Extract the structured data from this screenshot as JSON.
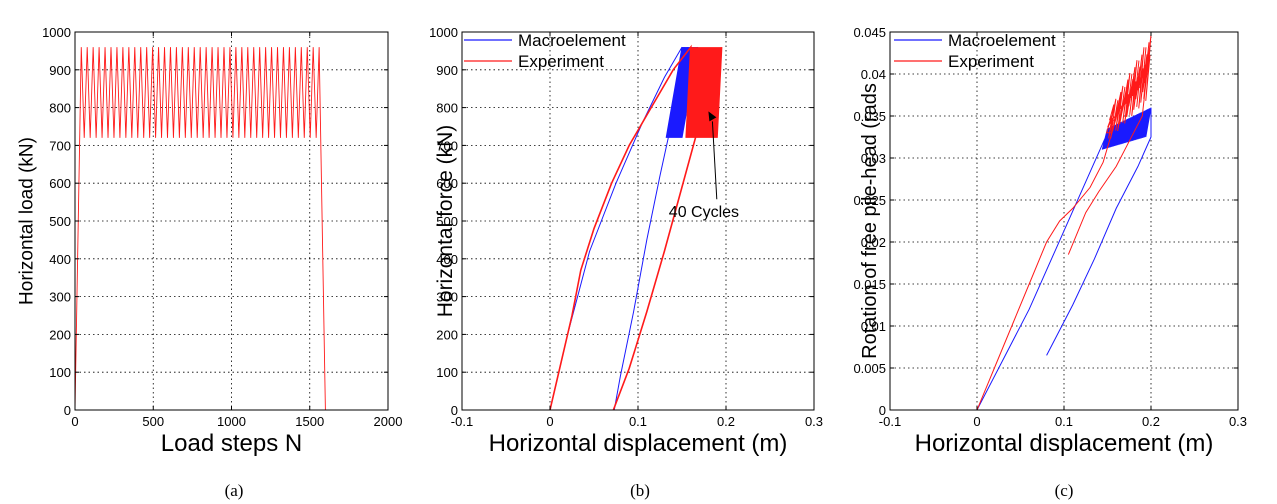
{
  "colors": {
    "macro": "#1a1aff",
    "experiment": "#ff1a1a",
    "axis": "#000000"
  },
  "chart_data": [
    {
      "id": "a",
      "type": "line",
      "caption": "(a)",
      "xlabel": "Load steps N",
      "ylabel": "Horizontal load (kN)",
      "xlim": [
        0,
        2000
      ],
      "ylim": [
        0,
        1000
      ],
      "xticks": [
        0,
        500,
        1000,
        1500,
        2000
      ],
      "yticks": [
        0,
        100,
        200,
        300,
        400,
        500,
        600,
        700,
        800,
        900,
        1000
      ],
      "grid": true,
      "series": [
        {
          "color": "experiment",
          "ramp_up": [
            [
              0,
              0
            ],
            [
              40,
              960
            ]
          ],
          "cycles": {
            "count": 40,
            "start": 40,
            "end": 1560,
            "min": 720,
            "max": 960
          },
          "unload": [
            [
              1560,
              960
            ],
            [
              1600,
              0
            ]
          ]
        }
      ]
    },
    {
      "id": "b",
      "type": "line",
      "caption": "(b)",
      "xlabel": "Horizontal displacement (m)",
      "ylabel": "Horizontal force (kN)",
      "xlim": [
        -0.1,
        0.3
      ],
      "ylim": [
        0,
        1000
      ],
      "xticks": [
        -0.1,
        0,
        0.1,
        0.2,
        0.3
      ],
      "yticks": [
        0,
        100,
        200,
        300,
        400,
        500,
        600,
        700,
        800,
        900,
        1000
      ],
      "grid": true,
      "legend": {
        "position": "top-left",
        "entries": [
          {
            "label": "Macroelement",
            "color": "macro"
          },
          {
            "label": "Experiment",
            "color": "experiment"
          }
        ]
      },
      "annotation": {
        "text": "40 Cycles",
        "arrow_to": [
          0.18,
          790
        ],
        "text_at": [
          0.135,
          510
        ]
      },
      "series": [
        {
          "color": "macro",
          "loading": [
            [
              0,
              0
            ],
            [
              0.02,
              200
            ],
            [
              0.045,
              420
            ],
            [
              0.075,
              600
            ],
            [
              0.105,
              760
            ],
            [
              0.13,
              880
            ],
            [
              0.15,
              960
            ]
          ],
          "cycles": {
            "count": 40,
            "x_start": 0.15,
            "x_end": 0.168,
            "min": 720,
            "max": 960,
            "dx": 0.02
          },
          "unloading": [
            [
              0.168,
              960
            ],
            [
              0.155,
              900
            ],
            [
              0.14,
              780
            ],
            [
              0.125,
              620
            ],
            [
              0.11,
              450
            ],
            [
              0.095,
              260
            ],
            [
              0.08,
              90
            ],
            [
              0.073,
              0
            ]
          ]
        },
        {
          "color": "experiment",
          "loading": [
            [
              0,
              0
            ],
            [
              0.01,
              100
            ],
            [
              0.025,
              250
            ],
            [
              0.035,
              370
            ],
            [
              0.05,
              480
            ],
            [
              0.07,
              600
            ],
            [
              0.09,
              700
            ],
            [
              0.11,
              780
            ],
            [
              0.125,
              840
            ],
            [
              0.14,
              900
            ],
            [
              0.16,
              960
            ]
          ],
          "cycles": {
            "count": 40,
            "x_start": 0.16,
            "x_end": 0.195,
            "min": 720,
            "max": 960,
            "dx": 0.015
          },
          "unloading": [
            [
              0.195,
              960
            ],
            [
              0.19,
              900
            ],
            [
              0.17,
              760
            ],
            [
              0.15,
              590
            ],
            [
              0.13,
              420
            ],
            [
              0.11,
              260
            ],
            [
              0.09,
              110
            ],
            [
              0.072,
              0
            ]
          ]
        }
      ]
    },
    {
      "id": "c",
      "type": "line",
      "caption": "(c)",
      "xlabel": "Horizontal displacement (m)",
      "ylabel": "Rotation of free pile-head (rads",
      "xlim": [
        -0.1,
        0.3
      ],
      "ylim": [
        0,
        0.045
      ],
      "xticks": [
        -0.1,
        0,
        0.1,
        0.2,
        0.3
      ],
      "yticks": [
        0,
        0.005,
        0.01,
        0.015,
        0.02,
        0.025,
        0.03,
        0.035,
        0.04,
        0.045
      ],
      "grid": true,
      "legend": {
        "position": "top-left",
        "entries": [
          {
            "label": "Macroelement",
            "color": "macro"
          },
          {
            "label": "Experiment",
            "color": "experiment"
          }
        ]
      },
      "series": [
        {
          "color": "macro",
          "loading": [
            [
              0,
              0
            ],
            [
              0.03,
              0.006
            ],
            [
              0.06,
              0.012
            ],
            [
              0.09,
              0.019
            ],
            [
              0.12,
              0.026
            ],
            [
              0.15,
              0.033
            ]
          ],
          "band": {
            "x_start": 0.15,
            "x_end": 0.2,
            "lower_start": 0.031,
            "lower_end": 0.0325,
            "upper_start": 0.0335,
            "upper_end": 0.036,
            "cycles": 40
          },
          "unloading": [
            [
              0.2,
              0.0325
            ],
            [
              0.185,
              0.029
            ],
            [
              0.16,
              0.024
            ],
            [
              0.135,
              0.018
            ],
            [
              0.11,
              0.0125
            ],
            [
              0.08,
              0.0065
            ]
          ]
        },
        {
          "color": "experiment",
          "loading": [
            [
              0,
              0
            ],
            [
              0.02,
              0.005
            ],
            [
              0.04,
              0.01
            ],
            [
              0.06,
              0.015
            ],
            [
              0.08,
              0.02
            ],
            [
              0.095,
              0.0225
            ],
            [
              0.11,
              0.024
            ],
            [
              0.13,
              0.0265
            ],
            [
              0.145,
              0.0295
            ],
            [
              0.155,
              0.033
            ]
          ],
          "band": {
            "x_start": 0.155,
            "x_end": 0.2,
            "lower_start": 0.033,
            "lower_end": 0.038,
            "upper_start": 0.035,
            "upper_end": 0.0435,
            "cycles": 40
          },
          "unloading": [
            [
              0.19,
              0.035
            ],
            [
              0.175,
              0.032
            ],
            [
              0.16,
              0.029
            ],
            [
              0.14,
              0.026
            ],
            [
              0.125,
              0.0235
            ],
            [
              0.115,
              0.021
            ],
            [
              0.105,
              0.0185
            ]
          ]
        }
      ]
    }
  ]
}
